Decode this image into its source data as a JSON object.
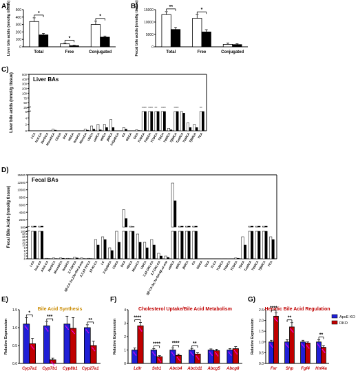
{
  "figure": {
    "panel_A_letter": "A)",
    "panel_B_letter": "B)",
    "panel_C_letter": "C)",
    "panel_D_letter": "D)",
    "panel_E_letter": "E)",
    "panel_F_letter": "F)",
    "panel_G_letter": "G)"
  },
  "colors": {
    "black": "#000000",
    "white": "#ffffff",
    "gray": "#b0b0b0",
    "apoe_blue": "#1f1fd6",
    "dko_red": "#c00000",
    "title_gold": "#c98a00",
    "title_red": "#c00000",
    "gene_red": "#c00000",
    "highlight_pink": "#ff00ff"
  },
  "chart_data": [
    {
      "id": "A",
      "type": "bar",
      "title": "",
      "ylabel": "Liver bile acids (nmol/g tissue)",
      "ylim": [
        0,
        500
      ],
      "yticks": [
        "0",
        "100",
        "200",
        "300",
        "400",
        "500"
      ],
      "categories": [
        "Total",
        "Free",
        "Conjugated"
      ],
      "series": [
        {
          "values": [
            340,
            40,
            300
          ],
          "errors": [
            50,
            12,
            45
          ]
        },
        {
          "values": [
            160,
            15,
            130
          ],
          "errors": [
            20,
            5,
            15
          ]
        }
      ],
      "significance": [
        "*",
        "*",
        "*"
      ]
    },
    {
      "id": "B",
      "type": "bar",
      "title": "",
      "ylabel": "Fecal bile acids (nmol/g tissue)",
      "ylim": [
        0,
        15000
      ],
      "yticks": [
        "0",
        "5000",
        "10000",
        "15000"
      ],
      "categories": [
        "Total",
        "Free",
        "Conjugated"
      ],
      "series": [
        {
          "values": [
            13000,
            11500,
            1000
          ],
          "errors": [
            1200,
            1500,
            500
          ]
        },
        {
          "values": [
            7000,
            6000,
            900
          ],
          "errors": [
            800,
            900,
            300
          ]
        }
      ],
      "significance": [
        "**",
        "*",
        ""
      ]
    },
    {
      "id": "C",
      "type": "bar",
      "title": "Liver BAs",
      "ylabel": "Liver bile acids (nmol/g tissue)",
      "axis_note": "broken y-axis",
      "yticks_upper": [
        "25",
        "50",
        "75",
        "100",
        "200",
        "300",
        "400",
        "500"
      ],
      "yticks_lower": [
        "0",
        "2",
        "4",
        "6"
      ],
      "categories": [
        "LCA",
        "IsoLCA",
        "NorDCA",
        "MuroDCA",
        "CDCA",
        "DCA",
        "HDCA",
        "IsoDCA",
        "MuroCA",
        "UDCA",
        "ωMCA",
        "αMCA",
        "βMCA",
        "3-EpiDCA",
        "CA",
        "GDCA",
        "GCA",
        "TUDCA",
        "THDCA",
        "TCDCA",
        "TDCA",
        "TαMCA",
        "TβMCA",
        "TωMCA",
        "TαMCA",
        "TβMCA",
        "TCA"
      ],
      "series": [
        {
          "values": [
            0,
            0,
            0,
            0.5,
            0,
            0,
            0,
            0,
            0.5,
            1.5,
            2,
            2,
            3.5,
            0,
            1,
            0,
            0.3,
            7,
            7,
            7,
            7,
            0.8,
            7,
            6,
            2.5,
            2,
            7
          ]
        },
        {
          "values": [
            0,
            0,
            0,
            0.2,
            0,
            0,
            0,
            0,
            0.2,
            0.5,
            0.3,
            1,
            1,
            0,
            0.5,
            0,
            0.1,
            7,
            7,
            6,
            7,
            0.3,
            7,
            5.5,
            1,
            1,
            6
          ]
        }
      ]
    },
    {
      "id": "D",
      "type": "bar",
      "title": "Fecal BAs",
      "ylabel": "Fecal Bile Acids (nmol/g tissue)",
      "axis_note": "broken y-axis",
      "yticks_upper": [
        "500",
        "2500",
        "4500",
        "6500",
        "8500",
        "10500",
        "12500",
        "15000"
      ],
      "yticks_lower": [
        "0",
        "2",
        "4",
        "6",
        "8",
        "10",
        "20",
        "40",
        "60",
        "80",
        "100"
      ],
      "categories": [
        "LCA",
        "IsoLCA",
        "AlloLCA",
        "NorDCA",
        "MuroDCA",
        "IsoDCA",
        "3,7-DKCA",
        "5β-CA-7α,12α-OH-3-one",
        "3,7,12-TKCA",
        "12-KLCA",
        "LC",
        "3-EpiDCA",
        "CDCA",
        "DCA",
        "HDCA",
        "MuroCA",
        "UDCA",
        "7,12-DKLCA",
        "3,7-DKLCA",
        "5β-CA-3α,7α-OH-6β-ol-one",
        "ωMCA",
        "αMCA",
        "βMCA",
        "CA",
        "GDCA",
        "GCA",
        "TLCA",
        "TUDCA",
        "THDCA",
        "TCDCA",
        "TDCA",
        "TωMCA",
        "TαMCA",
        "TβMCA",
        "TCA"
      ],
      "series": [
        {
          "values": [
            500,
            500,
            2,
            3,
            3,
            2,
            6,
            3,
            2,
            70,
            80,
            40,
            100,
            6000,
            500,
            90,
            60,
            70,
            20,
            10,
            15000,
            500,
            500,
            500,
            0,
            0,
            0,
            0.5,
            0.5,
            3,
            80,
            500,
            500,
            500,
            80
          ]
        },
        {
          "values": [
            500,
            500,
            1,
            1,
            2,
            1,
            3,
            1,
            1,
            50,
            70,
            30,
            60,
            3000,
            300,
            60,
            40,
            50,
            10,
            5,
            9000,
            500,
            500,
            500,
            0,
            0,
            0,
            0.3,
            0.3,
            2,
            50,
            500,
            500,
            500,
            70
          ]
        }
      ]
    },
    {
      "id": "E",
      "type": "bar",
      "title": "Bile Acid Synthesis",
      "ylabel": "Relative Expression",
      "ylim": [
        0,
        1.5
      ],
      "yticks": [
        "0.0",
        "0.5",
        "1.0",
        "1.5"
      ],
      "categories": [
        "Cyp7a1",
        "Cyp7b1",
        "Cyp8b1",
        "Cyp27a1"
      ],
      "series": [
        {
          "name": "ApoE KO",
          "values": [
            1.1,
            1.05,
            1.1,
            1.0
          ],
          "errors": [
            0.18,
            0.12,
            0.22,
            0.08
          ]
        },
        {
          "name": "DKO",
          "values": [
            0.55,
            0.1,
            0.98,
            0.5
          ],
          "errors": [
            0.15,
            0.05,
            0.3,
            0.12
          ]
        }
      ],
      "significance": [
        "*",
        "***",
        "",
        "**"
      ]
    },
    {
      "id": "F",
      "type": "bar",
      "title": "Cholesterol Uptake/Bile Acid Metabolism",
      "ylabel": "Relative Expression",
      "ylim": [
        0,
        4
      ],
      "yticks": [
        "0",
        "1",
        "2",
        "3",
        "4"
      ],
      "categories": [
        "Ldlr",
        "Srb1",
        "Abcb4",
        "Abcb11",
        "Abcg5",
        "Abcg8"
      ],
      "series": [
        {
          "name": "ApoE KO",
          "values": [
            1.0,
            1.0,
            1.0,
            1.0,
            1.0,
            1.0
          ],
          "errors": [
            0.15,
            0.1,
            0.15,
            0.12,
            0.08,
            0.1
          ]
        },
        {
          "name": "DKO",
          "values": [
            2.8,
            0.5,
            0.6,
            0.7,
            0.95,
            1.1
          ],
          "errors": [
            0.25,
            0.08,
            0.1,
            0.1,
            0.1,
            0.15
          ]
        }
      ],
      "significance": [
        "****",
        "****",
        "****",
        "**",
        "",
        ""
      ]
    },
    {
      "id": "G",
      "type": "bar",
      "title": "Hepatic Bile Acid Regulation",
      "ylabel": "Relative Expression",
      "ylim": [
        0,
        2.5
      ],
      "yticks": [
        "0.0",
        "0.5",
        "1.0",
        "1.5",
        "2.0",
        "2.5"
      ],
      "categories": [
        "Fxr",
        "Shp",
        "Fgf4",
        "Hnf4a"
      ],
      "series": [
        {
          "name": "ApoE KO",
          "values": [
            1.0,
            1.0,
            1.0,
            1.0
          ],
          "errors": [
            0.08,
            0.1,
            0.08,
            0.1
          ]
        },
        {
          "name": "DKO",
          "values": [
            2.2,
            1.7,
            0.95,
            0.75
          ],
          "errors": [
            0.15,
            0.2,
            0.05,
            0.08
          ]
        }
      ],
      "significance": [
        "****",
        "**",
        "",
        "**"
      ],
      "legend": [
        "ApoE KO",
        "DKO"
      ],
      "legend_position": "top-right"
    }
  ]
}
